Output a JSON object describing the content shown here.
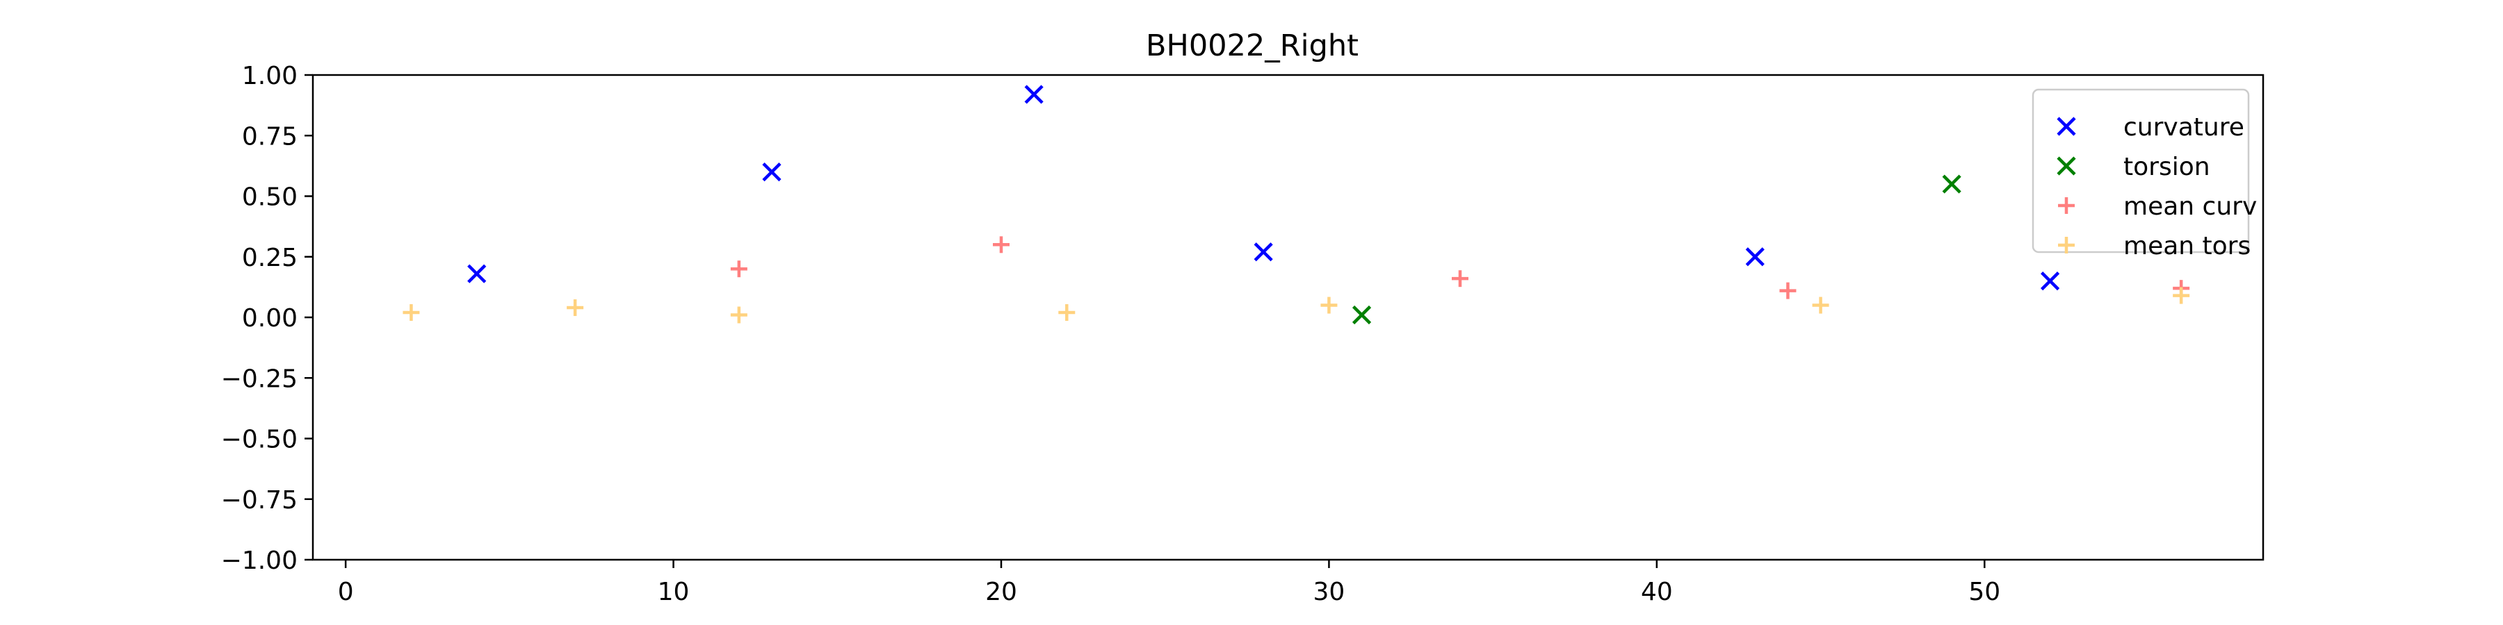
{
  "chart_data": {
    "type": "scatter",
    "title": "BH0022_Right",
    "xlabel": "",
    "ylabel": "",
    "xlim": [
      -1,
      58.5
    ],
    "ylim": [
      -1.0,
      1.0
    ],
    "xticks": [
      0,
      10,
      20,
      30,
      40,
      50
    ],
    "xtick_labels": [
      "0",
      "10",
      "20",
      "30",
      "40",
      "50"
    ],
    "yticks": [
      -1.0,
      -0.75,
      -0.5,
      -0.25,
      0.0,
      0.25,
      0.5,
      0.75,
      1.0
    ],
    "ytick_labels": [
      "−1.00",
      "−0.75",
      "−0.50",
      "−0.25",
      "0.00",
      "0.25",
      "0.50",
      "0.75",
      "1.00"
    ],
    "grid": false,
    "legend_position": "top-right",
    "series": [
      {
        "name": "curvature",
        "marker": "x",
        "color": "#0000ff",
        "points": [
          [
            4,
            0.18
          ],
          [
            13,
            0.6
          ],
          [
            21,
            0.92
          ],
          [
            28,
            0.27
          ],
          [
            43,
            0.25
          ],
          [
            52,
            0.15
          ]
        ]
      },
      {
        "name": "torsion",
        "marker": "x",
        "color": "#008000",
        "points": [
          [
            31,
            0.01
          ],
          [
            49,
            0.55
          ]
        ]
      },
      {
        "name": "mean curv",
        "marker": "+",
        "color": "#ff7f7f",
        "points": [
          [
            12,
            0.2
          ],
          [
            20,
            0.3
          ],
          [
            34,
            0.16
          ],
          [
            44,
            0.11
          ],
          [
            56,
            0.12
          ]
        ]
      },
      {
        "name": "mean tors",
        "marker": "+",
        "color": "#ffd27f",
        "points": [
          [
            2,
            0.02
          ],
          [
            7,
            0.04
          ],
          [
            12,
            0.01
          ],
          [
            22,
            0.02
          ],
          [
            30,
            0.05
          ],
          [
            45,
            0.05
          ],
          [
            56,
            0.09
          ]
        ]
      }
    ]
  }
}
